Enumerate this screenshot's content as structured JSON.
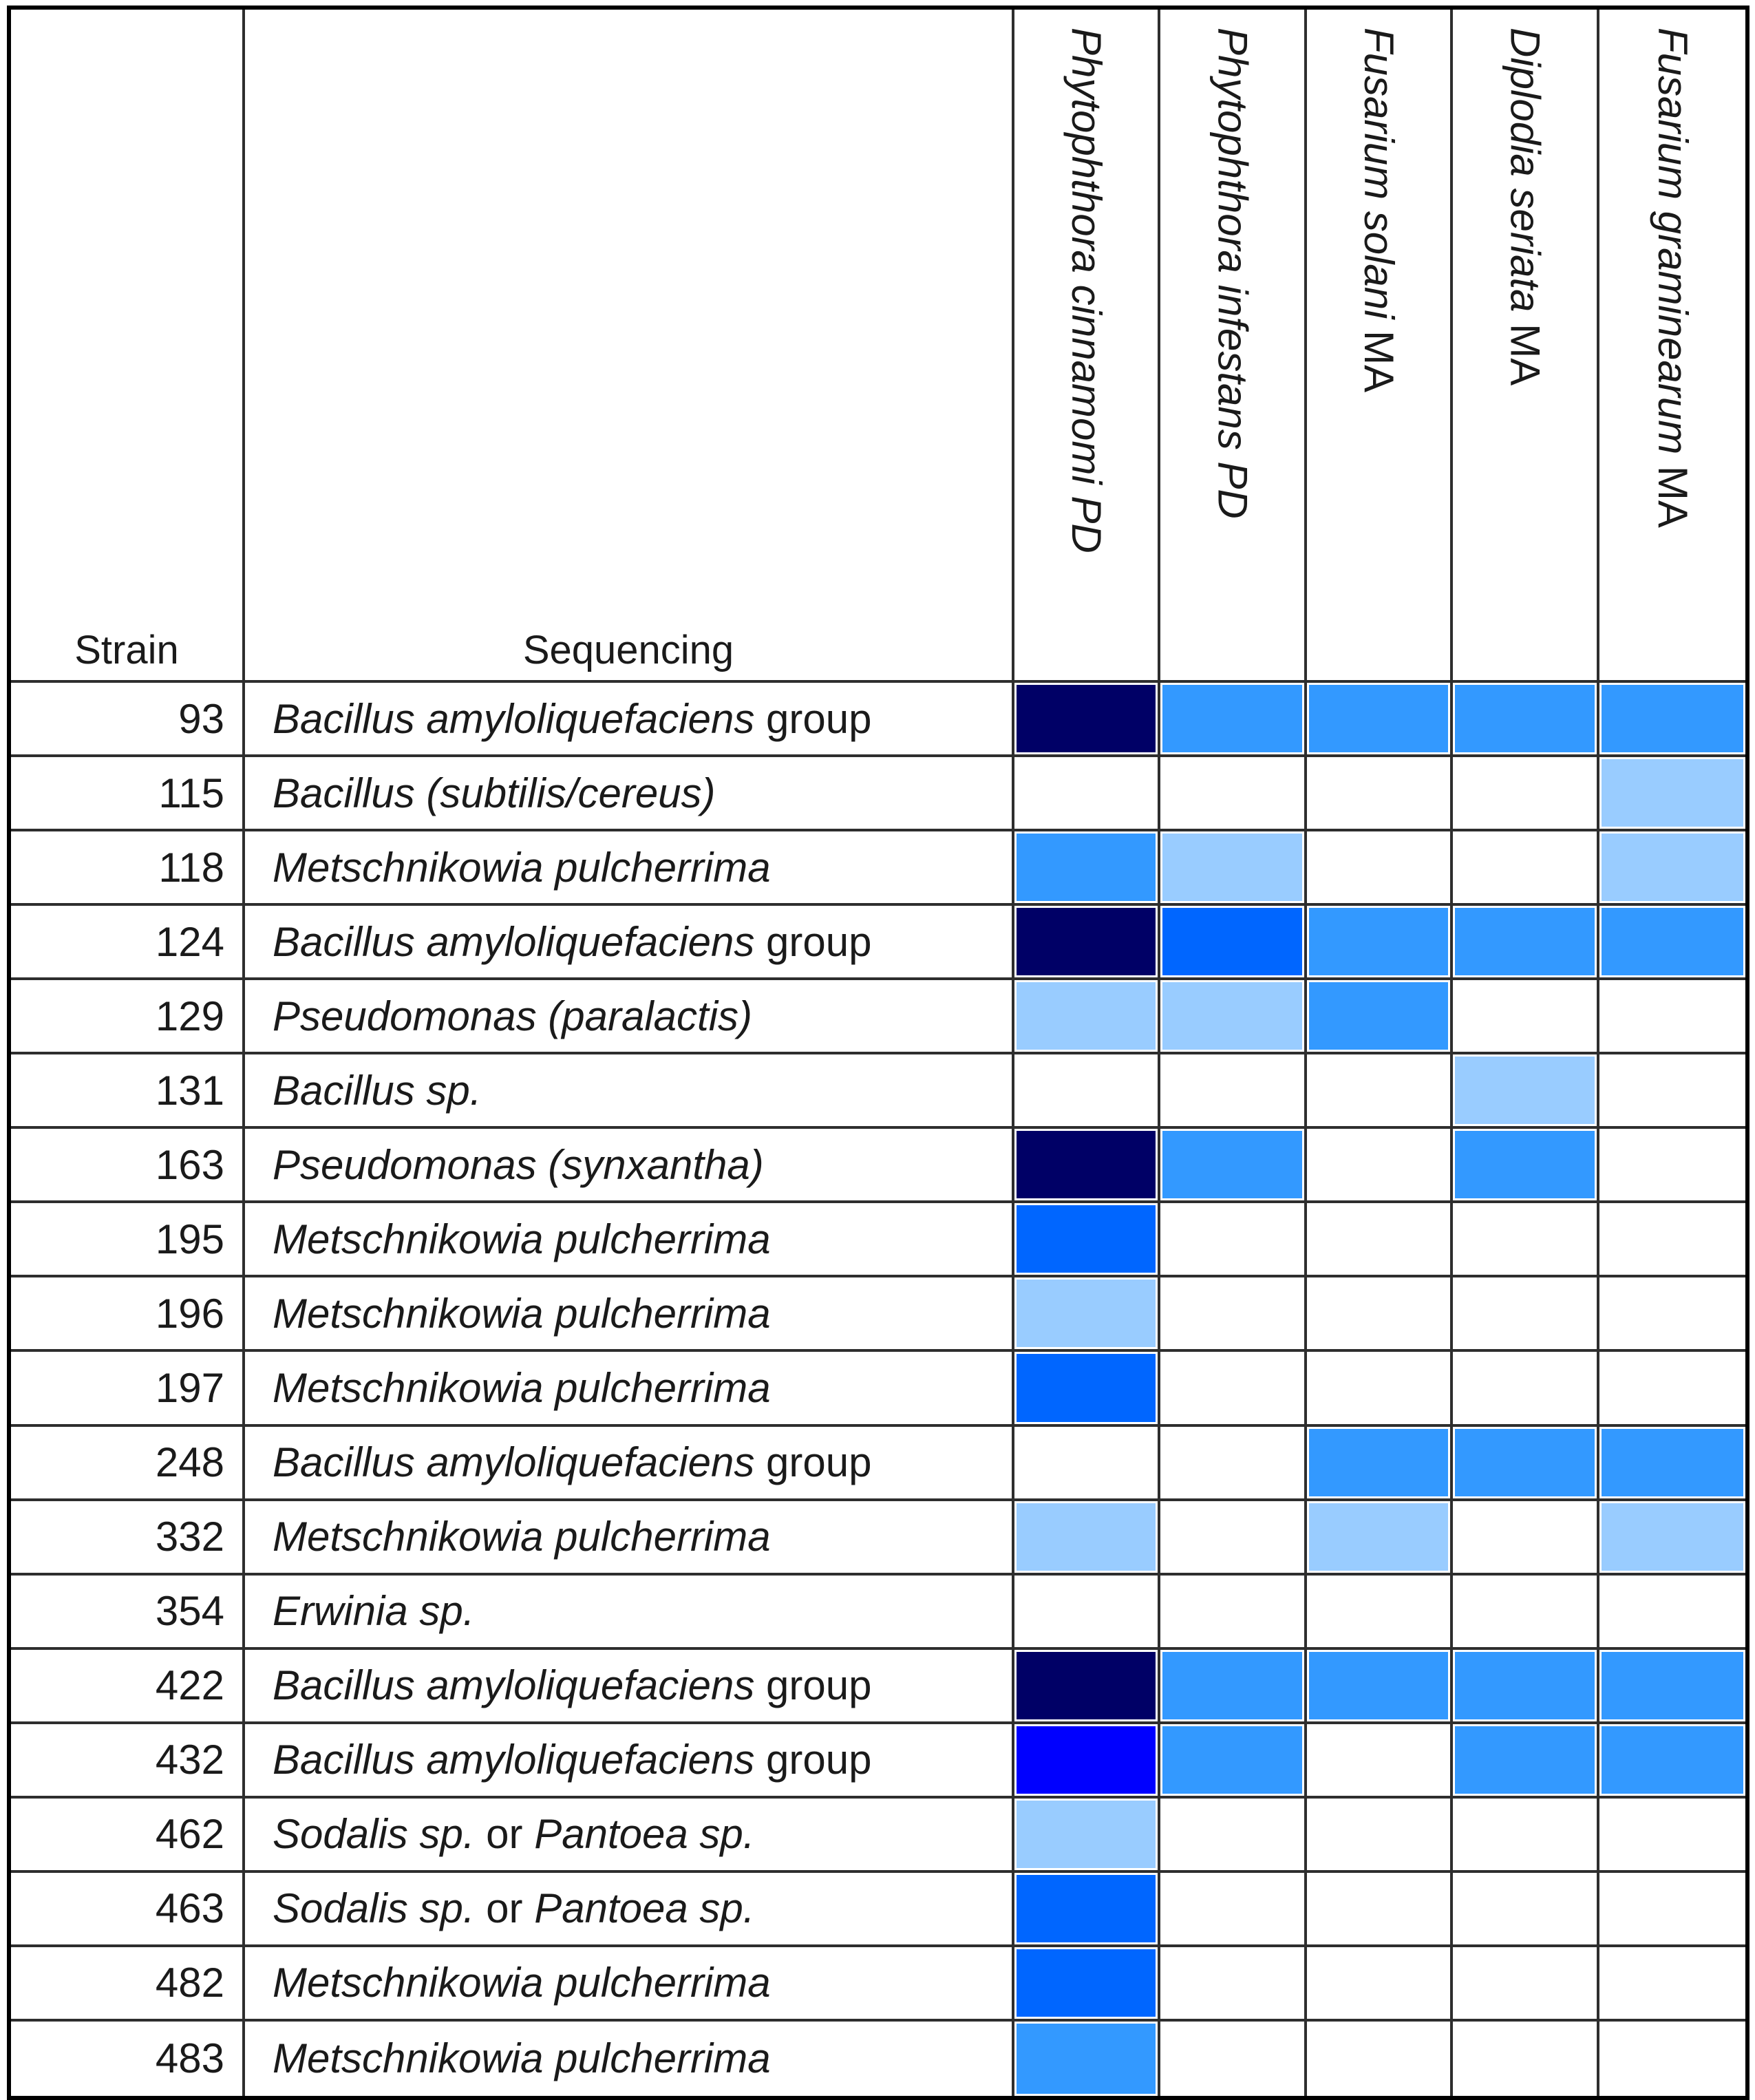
{
  "table": {
    "strain_header": "Strain",
    "sequencing_header": "Sequencing",
    "palette": {
      "0": "#FFFFFF",
      "1": "#99CCFF",
      "2": "#3399FF",
      "3": "#0066FF",
      "4": "#0000FF",
      "5": "#000066"
    },
    "columns": [
      {
        "name": "Phytophthora cinnamomi PD",
        "segments": [
          {
            "t": "Phytophthora cinnamomi PD",
            "i": true
          }
        ]
      },
      {
        "name": "Phytophthora infestans PD",
        "segments": [
          {
            "t": "Phytophthora infestans PD",
            "i": true
          }
        ]
      },
      {
        "name": "Fusarium solani MA",
        "segments": [
          {
            "t": "Fusarium solani",
            "i": true
          },
          {
            "t": " MA",
            "i": false
          }
        ]
      },
      {
        "name": "Diplodia seriata MA",
        "segments": [
          {
            "t": "Diplodia seriata",
            "i": true
          },
          {
            "t": " MA",
            "i": false
          }
        ]
      },
      {
        "name": "Fusarium graminearum MA",
        "segments": [
          {
            "t": "Fusarium graminearum",
            "i": true
          },
          {
            "t": " MA",
            "i": false
          }
        ]
      }
    ],
    "rows": [
      {
        "strain": "93",
        "seq": [
          {
            "t": "Bacillus amyloliquefaciens",
            "i": true
          },
          {
            "t": " group",
            "i": false
          }
        ],
        "cells": [
          5,
          2,
          2,
          2,
          2
        ]
      },
      {
        "strain": "115",
        "seq": [
          {
            "t": "Bacillus (subtilis/cereus)",
            "i": true
          }
        ],
        "cells": [
          0,
          0,
          0,
          0,
          1
        ]
      },
      {
        "strain": "118",
        "seq": [
          {
            "t": "Metschnikowia pulcherrima",
            "i": true
          }
        ],
        "cells": [
          2,
          1,
          0,
          0,
          1
        ]
      },
      {
        "strain": "124",
        "seq": [
          {
            "t": "Bacillus amyloliquefaciens",
            "i": true
          },
          {
            "t": " group",
            "i": false
          }
        ],
        "cells": [
          5,
          3,
          2,
          2,
          2
        ]
      },
      {
        "strain": "129",
        "seq": [
          {
            "t": "Pseudomonas (paralactis)",
            "i": true
          }
        ],
        "cells": [
          1,
          1,
          2,
          0,
          0
        ]
      },
      {
        "strain": "131",
        "seq": [
          {
            "t": "Bacillus sp.",
            "i": true
          }
        ],
        "cells": [
          0,
          0,
          0,
          1,
          0
        ]
      },
      {
        "strain": "163",
        "seq": [
          {
            "t": "Pseudomonas (synxantha)",
            "i": true
          }
        ],
        "cells": [
          5,
          2,
          0,
          2,
          0
        ]
      },
      {
        "strain": "195",
        "seq": [
          {
            "t": "Metschnikowia pulcherrima",
            "i": true
          }
        ],
        "cells": [
          3,
          0,
          0,
          0,
          0
        ]
      },
      {
        "strain": "196",
        "seq": [
          {
            "t": "Metschnikowia pulcherrima",
            "i": true
          }
        ],
        "cells": [
          1,
          0,
          0,
          0,
          0
        ]
      },
      {
        "strain": "197",
        "seq": [
          {
            "t": "Metschnikowia pulcherrima",
            "i": true
          }
        ],
        "cells": [
          3,
          0,
          0,
          0,
          0
        ]
      },
      {
        "strain": "248",
        "seq": [
          {
            "t": "Bacillus amyloliquefaciens",
            "i": true
          },
          {
            "t": " group",
            "i": false
          }
        ],
        "cells": [
          0,
          0,
          2,
          2,
          2
        ]
      },
      {
        "strain": "332",
        "seq": [
          {
            "t": "Metschnikowia pulcherrima",
            "i": true
          }
        ],
        "cells": [
          1,
          0,
          1,
          0,
          1
        ]
      },
      {
        "strain": "354",
        "seq": [
          {
            "t": "Erwinia sp.",
            "i": true
          }
        ],
        "cells": [
          0,
          0,
          0,
          0,
          0
        ]
      },
      {
        "strain": "422",
        "seq": [
          {
            "t": "Bacillus amyloliquefaciens",
            "i": true
          },
          {
            "t": " group",
            "i": false
          }
        ],
        "cells": [
          5,
          2,
          2,
          2,
          2
        ]
      },
      {
        "strain": "432",
        "seq": [
          {
            "t": "Bacillus amyloliquefaciens",
            "i": true
          },
          {
            "t": " group",
            "i": false
          }
        ],
        "cells": [
          4,
          2,
          0,
          2,
          2
        ]
      },
      {
        "strain": "462",
        "seq": [
          {
            "t": "Sodalis sp.",
            "i": true
          },
          {
            "t": " or ",
            "i": false
          },
          {
            "t": "Pantoea sp.",
            "i": true
          }
        ],
        "cells": [
          1,
          0,
          0,
          0,
          0
        ]
      },
      {
        "strain": "463",
        "seq": [
          {
            "t": "Sodalis sp.",
            "i": true
          },
          {
            "t": " or ",
            "i": false
          },
          {
            "t": "Pantoea sp.",
            "i": true
          }
        ],
        "cells": [
          3,
          0,
          0,
          0,
          0
        ]
      },
      {
        "strain": "482",
        "seq": [
          {
            "t": "Metschnikowia pulcherrima",
            "i": true
          }
        ],
        "cells": [
          3,
          0,
          0,
          0,
          0
        ]
      },
      {
        "strain": "483",
        "seq": [
          {
            "t": "Metschnikowia pulcherrima",
            "i": true
          }
        ],
        "cells": [
          2,
          0,
          0,
          0,
          0
        ]
      }
    ]
  },
  "chart_data": {
    "type": "heatmap",
    "title": "",
    "x_categories": [
      "Phytophthora cinnamomi PD",
      "Phytophthora infestans PD",
      "Fusarium solani MA",
      "Diplodia seriata MA",
      "Fusarium graminearum MA"
    ],
    "y_categories": [
      "93",
      "115",
      "118",
      "124",
      "129",
      "131",
      "163",
      "195",
      "196",
      "197",
      "248",
      "332",
      "354",
      "422",
      "432",
      "462",
      "463",
      "482",
      "483"
    ],
    "y_labels": [
      "Bacillus amyloliquefaciens group",
      "Bacillus (subtilis/cereus)",
      "Metschnikowia pulcherrima",
      "Bacillus amyloliquefaciens group",
      "Pseudomonas (paralactis)",
      "Bacillus sp.",
      "Pseudomonas (synxantha)",
      "Metschnikowia pulcherrima",
      "Metschnikowia pulcherrima",
      "Metschnikowia pulcherrima",
      "Bacillus amyloliquefaciens group",
      "Metschnikowia pulcherrima",
      "Erwinia sp.",
      "Bacillus amyloliquefaciens group",
      "Bacillus amyloliquefaciens group",
      "Sodalis sp. or Pantoea sp.",
      "Sodalis sp. or Pantoea sp.",
      "Metschnikowia pulcherrima",
      "Metschnikowia pulcherrima"
    ],
    "values": [
      [
        5,
        2,
        2,
        2,
        2
      ],
      [
        0,
        0,
        0,
        0,
        1
      ],
      [
        2,
        1,
        0,
        0,
        1
      ],
      [
        5,
        3,
        2,
        2,
        2
      ],
      [
        1,
        1,
        2,
        0,
        0
      ],
      [
        0,
        0,
        0,
        1,
        0
      ],
      [
        5,
        2,
        0,
        2,
        0
      ],
      [
        3,
        0,
        0,
        0,
        0
      ],
      [
        1,
        0,
        0,
        0,
        0
      ],
      [
        3,
        0,
        0,
        0,
        0
      ],
      [
        0,
        0,
        2,
        2,
        2
      ],
      [
        1,
        0,
        1,
        0,
        1
      ],
      [
        0,
        0,
        0,
        0,
        0
      ],
      [
        5,
        2,
        2,
        2,
        2
      ],
      [
        4,
        2,
        0,
        2,
        2
      ],
      [
        1,
        0,
        0,
        0,
        0
      ],
      [
        3,
        0,
        0,
        0,
        0
      ],
      [
        3,
        0,
        0,
        0,
        0
      ],
      [
        2,
        0,
        0,
        0,
        0
      ]
    ],
    "value_scale": {
      "0": "#FFFFFF",
      "1": "#99CCFF",
      "2": "#3399FF",
      "3": "#0066FF",
      "4": "#0000FF",
      "5": "#000066"
    },
    "legend_position": "none",
    "grid": true
  }
}
